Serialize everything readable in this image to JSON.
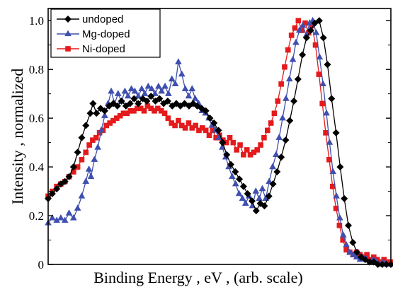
{
  "chart_data": {
    "type": "line",
    "title": "",
    "xlabel": "Binding Energy , eV , (arb. scale)",
    "ylabel": "Intensity , normalized",
    "xlim": [
      0,
      1
    ],
    "ylim": [
      0,
      1.05
    ],
    "yticks": [
      0,
      0.2,
      0.4,
      0.6,
      0.8,
      1.0
    ],
    "ytick_labels": [
      "0",
      "0.2",
      "0.4",
      "0.6",
      "0.8",
      "1.0"
    ],
    "x_tick_labels_shown": false,
    "grid": false,
    "legend_position": "top-left",
    "series": [
      {
        "name": "undoped",
        "color": "#000000",
        "marker": "diamond",
        "points": [
          [
            0.0,
            0.27
          ],
          [
            0.012,
            0.29
          ],
          [
            0.025,
            0.31
          ],
          [
            0.037,
            0.33
          ],
          [
            0.049,
            0.34
          ],
          [
            0.061,
            0.36
          ],
          [
            0.074,
            0.4
          ],
          [
            0.086,
            0.46
          ],
          [
            0.098,
            0.52
          ],
          [
            0.11,
            0.57
          ],
          [
            0.123,
            0.62
          ],
          [
            0.131,
            0.66
          ],
          [
            0.141,
            0.62
          ],
          [
            0.153,
            0.64
          ],
          [
            0.165,
            0.63
          ],
          [
            0.178,
            0.65
          ],
          [
            0.19,
            0.66
          ],
          [
            0.202,
            0.65
          ],
          [
            0.214,
            0.67
          ],
          [
            0.227,
            0.65
          ],
          [
            0.239,
            0.66
          ],
          [
            0.251,
            0.68
          ],
          [
            0.263,
            0.66
          ],
          [
            0.276,
            0.68
          ],
          [
            0.288,
            0.67
          ],
          [
            0.3,
            0.69
          ],
          [
            0.313,
            0.67
          ],
          [
            0.325,
            0.68
          ],
          [
            0.337,
            0.66
          ],
          [
            0.349,
            0.67
          ],
          [
            0.362,
            0.65
          ],
          [
            0.374,
            0.66
          ],
          [
            0.386,
            0.65
          ],
          [
            0.398,
            0.66
          ],
          [
            0.411,
            0.65
          ],
          [
            0.423,
            0.66
          ],
          [
            0.435,
            0.65
          ],
          [
            0.448,
            0.64
          ],
          [
            0.46,
            0.63
          ],
          [
            0.472,
            0.6
          ],
          [
            0.484,
            0.58
          ],
          [
            0.497,
            0.55
          ],
          [
            0.509,
            0.5
          ],
          [
            0.521,
            0.45
          ],
          [
            0.533,
            0.41
          ],
          [
            0.546,
            0.38
          ],
          [
            0.558,
            0.35
          ],
          [
            0.57,
            0.32
          ],
          [
            0.582,
            0.29
          ],
          [
            0.595,
            0.26
          ],
          [
            0.607,
            0.22
          ],
          [
            0.619,
            0.25
          ],
          [
            0.631,
            0.24
          ],
          [
            0.644,
            0.28
          ],
          [
            0.656,
            0.33
          ],
          [
            0.668,
            0.38
          ],
          [
            0.68,
            0.44
          ],
          [
            0.693,
            0.51
          ],
          [
            0.705,
            0.59
          ],
          [
            0.717,
            0.67
          ],
          [
            0.729,
            0.76
          ],
          [
            0.742,
            0.86
          ],
          [
            0.754,
            0.93
          ],
          [
            0.766,
            0.96
          ],
          [
            0.778,
            0.99
          ],
          [
            0.791,
            1.0
          ],
          [
            0.803,
            0.93
          ],
          [
            0.815,
            0.82
          ],
          [
            0.827,
            0.68
          ],
          [
            0.84,
            0.54
          ],
          [
            0.852,
            0.4
          ],
          [
            0.864,
            0.27
          ],
          [
            0.876,
            0.16
          ],
          [
            0.889,
            0.09
          ],
          [
            0.901,
            0.05
          ],
          [
            0.913,
            0.03
          ],
          [
            0.925,
            0.02
          ],
          [
            0.938,
            0.01
          ],
          [
            0.95,
            0.01
          ],
          [
            0.962,
            0.0
          ],
          [
            0.975,
            0.0
          ],
          [
            0.987,
            0.0
          ],
          [
            1.0,
            0.0
          ]
        ]
      },
      {
        "name": "Mg-doped",
        "color": "#3f4faf",
        "marker": "triangle",
        "points": [
          [
            0.0,
            0.17
          ],
          [
            0.012,
            0.19
          ],
          [
            0.025,
            0.18
          ],
          [
            0.037,
            0.19
          ],
          [
            0.049,
            0.18
          ],
          [
            0.061,
            0.21
          ],
          [
            0.074,
            0.19
          ],
          [
            0.086,
            0.23
          ],
          [
            0.098,
            0.28
          ],
          [
            0.11,
            0.34
          ],
          [
            0.119,
            0.39
          ],
          [
            0.125,
            0.36
          ],
          [
            0.135,
            0.43
          ],
          [
            0.145,
            0.48
          ],
          [
            0.155,
            0.55
          ],
          [
            0.165,
            0.61
          ],
          [
            0.175,
            0.66
          ],
          [
            0.184,
            0.71
          ],
          [
            0.194,
            0.66
          ],
          [
            0.204,
            0.7
          ],
          [
            0.214,
            0.67
          ],
          [
            0.224,
            0.71
          ],
          [
            0.233,
            0.69
          ],
          [
            0.243,
            0.72
          ],
          [
            0.253,
            0.71
          ],
          [
            0.263,
            0.69
          ],
          [
            0.273,
            0.72
          ],
          [
            0.282,
            0.7
          ],
          [
            0.292,
            0.73
          ],
          [
            0.302,
            0.72
          ],
          [
            0.312,
            0.7
          ],
          [
            0.322,
            0.73
          ],
          [
            0.331,
            0.71
          ],
          [
            0.341,
            0.73
          ],
          [
            0.351,
            0.7
          ],
          [
            0.361,
            0.76
          ],
          [
            0.371,
            0.74
          ],
          [
            0.38,
            0.83
          ],
          [
            0.39,
            0.78
          ],
          [
            0.4,
            0.72
          ],
          [
            0.41,
            0.69
          ],
          [
            0.42,
            0.72
          ],
          [
            0.429,
            0.68
          ],
          [
            0.439,
            0.66
          ],
          [
            0.449,
            0.63
          ],
          [
            0.459,
            0.62
          ],
          [
            0.469,
            0.6
          ],
          [
            0.478,
            0.57
          ],
          [
            0.488,
            0.55
          ],
          [
            0.498,
            0.52
          ],
          [
            0.508,
            0.48
          ],
          [
            0.518,
            0.44
          ],
          [
            0.527,
            0.4
          ],
          [
            0.537,
            0.36
          ],
          [
            0.547,
            0.33
          ],
          [
            0.557,
            0.29
          ],
          [
            0.567,
            0.27
          ],
          [
            0.576,
            0.25
          ],
          [
            0.586,
            0.28
          ],
          [
            0.596,
            0.24
          ],
          [
            0.606,
            0.3
          ],
          [
            0.616,
            0.27
          ],
          [
            0.625,
            0.31
          ],
          [
            0.635,
            0.27
          ],
          [
            0.645,
            0.34
          ],
          [
            0.655,
            0.4
          ],
          [
            0.665,
            0.45
          ],
          [
            0.674,
            0.52
          ],
          [
            0.684,
            0.6
          ],
          [
            0.694,
            0.68
          ],
          [
            0.704,
            0.76
          ],
          [
            0.714,
            0.84
          ],
          [
            0.723,
            0.91
          ],
          [
            0.733,
            0.96
          ],
          [
            0.743,
            0.98
          ],
          [
            0.753,
            0.94
          ],
          [
            0.763,
            0.99
          ],
          [
            0.772,
            1.0
          ],
          [
            0.782,
            0.95
          ],
          [
            0.792,
            0.85
          ],
          [
            0.802,
            0.74
          ],
          [
            0.812,
            0.62
          ],
          [
            0.821,
            0.5
          ],
          [
            0.831,
            0.38
          ],
          [
            0.841,
            0.28
          ],
          [
            0.851,
            0.19
          ],
          [
            0.861,
            0.12
          ],
          [
            0.87,
            0.08
          ],
          [
            0.88,
            0.05
          ],
          [
            0.89,
            0.04
          ],
          [
            0.9,
            0.03
          ],
          [
            0.91,
            0.02
          ],
          [
            0.919,
            0.03
          ],
          [
            0.929,
            0.02
          ],
          [
            0.939,
            0.01
          ],
          [
            0.949,
            0.02
          ],
          [
            0.959,
            0.01
          ],
          [
            0.968,
            0.0
          ],
          [
            0.978,
            0.01
          ],
          [
            0.988,
            0.0
          ],
          [
            1.0,
            0.0
          ]
        ]
      },
      {
        "name": "Ni-doped",
        "color": "#e41a1c",
        "marker": "square",
        "points": [
          [
            0.0,
            0.28
          ],
          [
            0.012,
            0.3
          ],
          [
            0.025,
            0.32
          ],
          [
            0.037,
            0.33
          ],
          [
            0.049,
            0.34
          ],
          [
            0.061,
            0.36
          ],
          [
            0.074,
            0.38
          ],
          [
            0.086,
            0.4
          ],
          [
            0.098,
            0.43
          ],
          [
            0.11,
            0.46
          ],
          [
            0.12,
            0.49
          ],
          [
            0.13,
            0.51
          ],
          [
            0.14,
            0.52
          ],
          [
            0.15,
            0.54
          ],
          [
            0.16,
            0.55
          ],
          [
            0.17,
            0.57
          ],
          [
            0.18,
            0.58
          ],
          [
            0.19,
            0.59
          ],
          [
            0.2,
            0.6
          ],
          [
            0.21,
            0.61
          ],
          [
            0.22,
            0.62
          ],
          [
            0.23,
            0.62
          ],
          [
            0.24,
            0.63
          ],
          [
            0.25,
            0.63
          ],
          [
            0.26,
            0.64
          ],
          [
            0.27,
            0.64
          ],
          [
            0.28,
            0.63
          ],
          [
            0.29,
            0.65
          ],
          [
            0.3,
            0.64
          ],
          [
            0.31,
            0.63
          ],
          [
            0.32,
            0.64
          ],
          [
            0.33,
            0.63
          ],
          [
            0.34,
            0.62
          ],
          [
            0.35,
            0.6
          ],
          [
            0.36,
            0.58
          ],
          [
            0.37,
            0.57
          ],
          [
            0.38,
            0.59
          ],
          [
            0.39,
            0.57
          ],
          [
            0.4,
            0.56
          ],
          [
            0.41,
            0.58
          ],
          [
            0.42,
            0.56
          ],
          [
            0.43,
            0.57
          ],
          [
            0.44,
            0.55
          ],
          [
            0.45,
            0.56
          ],
          [
            0.46,
            0.55
          ],
          [
            0.47,
            0.53
          ],
          [
            0.48,
            0.55
          ],
          [
            0.49,
            0.52
          ],
          [
            0.5,
            0.53
          ],
          [
            0.51,
            0.51
          ],
          [
            0.52,
            0.5
          ],
          [
            0.53,
            0.52
          ],
          [
            0.54,
            0.5
          ],
          [
            0.55,
            0.47
          ],
          [
            0.56,
            0.49
          ],
          [
            0.57,
            0.45
          ],
          [
            0.58,
            0.47
          ],
          [
            0.59,
            0.45
          ],
          [
            0.6,
            0.46
          ],
          [
            0.61,
            0.47
          ],
          [
            0.62,
            0.49
          ],
          [
            0.63,
            0.52
          ],
          [
            0.64,
            0.55
          ],
          [
            0.65,
            0.58
          ],
          [
            0.66,
            0.62
          ],
          [
            0.67,
            0.67
          ],
          [
            0.68,
            0.74
          ],
          [
            0.69,
            0.81
          ],
          [
            0.7,
            0.88
          ],
          [
            0.71,
            0.94
          ],
          [
            0.72,
            0.97
          ],
          [
            0.73,
            1.0
          ],
          [
            0.74,
            0.96
          ],
          [
            0.75,
            0.99
          ],
          [
            0.76,
            0.95
          ],
          [
            0.77,
            0.98
          ],
          [
            0.78,
            0.9
          ],
          [
            0.79,
            0.78
          ],
          [
            0.8,
            0.66
          ],
          [
            0.81,
            0.54
          ],
          [
            0.82,
            0.43
          ],
          [
            0.83,
            0.32
          ],
          [
            0.84,
            0.23
          ],
          [
            0.85,
            0.16
          ],
          [
            0.86,
            0.1
          ],
          [
            0.87,
            0.06
          ],
          [
            0.88,
            0.05
          ],
          [
            0.89,
            0.04
          ],
          [
            0.9,
            0.05
          ],
          [
            0.91,
            0.04
          ],
          [
            0.92,
            0.03
          ],
          [
            0.93,
            0.04
          ],
          [
            0.94,
            0.02
          ],
          [
            0.95,
            0.03
          ],
          [
            0.96,
            0.02
          ],
          [
            0.97,
            0.01
          ],
          [
            0.98,
            0.02
          ],
          [
            0.99,
            0.01
          ],
          [
            1.0,
            0.01
          ]
        ]
      }
    ]
  }
}
